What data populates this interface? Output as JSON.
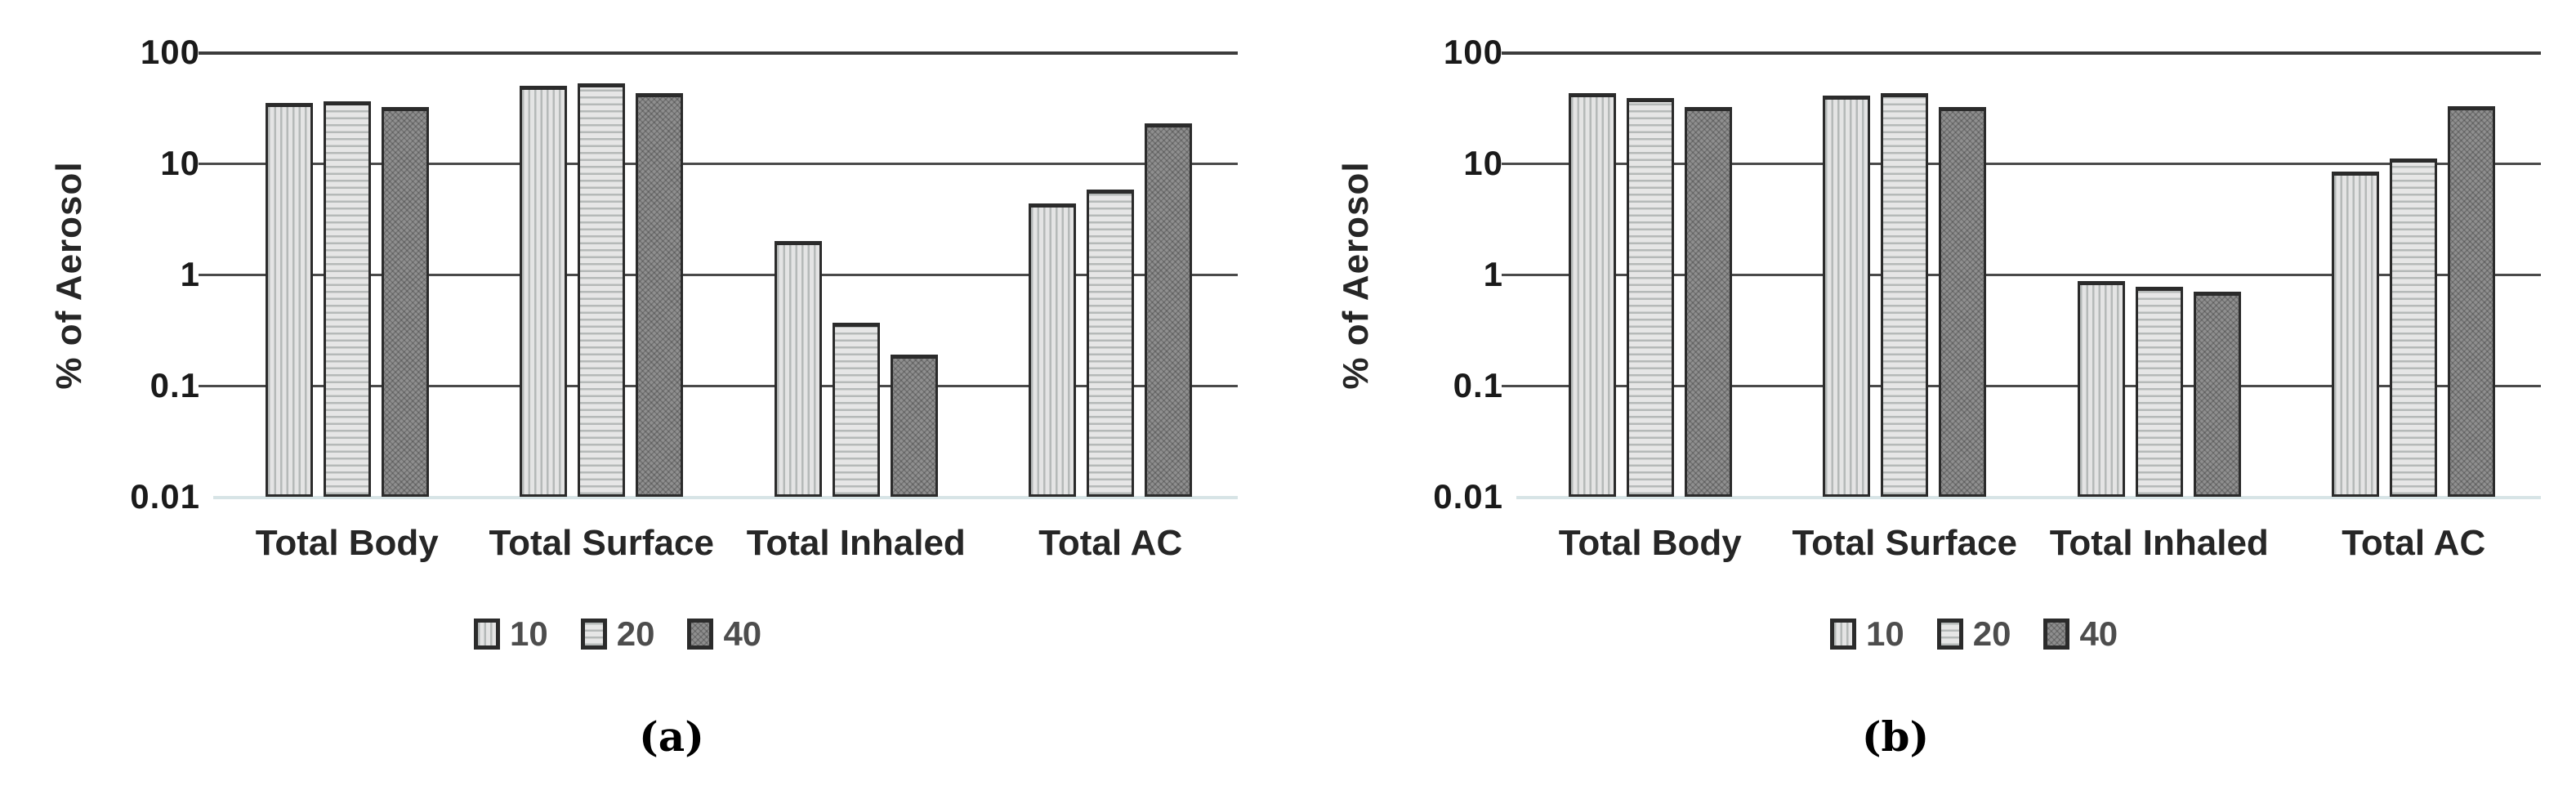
{
  "figure": {
    "background": "#ffffff",
    "panel_a_label": "(a)",
    "panel_b_label": "(b)"
  },
  "colors": {
    "bar_light_fill": "#e4e4e4",
    "bar_stripe": "#b5b9b8",
    "bar_dark_fill": "#8f8f8f",
    "bar_outline": "#2b2b2b",
    "gridline": "#4a4a4a",
    "baseline": "#d7e4e6",
    "text": "#1f1f1f",
    "legend_text": "#4d4d4d"
  },
  "chart_data": [
    {
      "type": "bar",
      "panel_label": "(a)",
      "ylabel": "% of Aerosol",
      "xlabel": "",
      "yscale": "log",
      "ylim": [
        0.01,
        100
      ],
      "yticks": [
        "100",
        "10",
        "1",
        "0.1",
        "0.01"
      ],
      "grid": true,
      "legend_position": "bottom",
      "categories": [
        "Total Body",
        "Total Surface",
        "Total Inhaled",
        "Total AC"
      ],
      "series": [
        {
          "name": "10",
          "pattern": "vertical-stripes",
          "values": [
            35,
            50,
            2.0,
            4.4
          ]
        },
        {
          "name": "20",
          "pattern": "horizontal-stripes",
          "values": [
            36,
            53,
            0.37,
            5.8
          ]
        },
        {
          "name": "40",
          "pattern": "dark-crosshatch",
          "values": [
            32,
            43,
            0.19,
            23
          ]
        }
      ]
    },
    {
      "type": "bar",
      "panel_label": "(b)",
      "ylabel": "% of Aerosol",
      "xlabel": "",
      "yscale": "log",
      "ylim": [
        0.01,
        100
      ],
      "yticks": [
        "100",
        "10",
        "1",
        "0.1",
        "0.01"
      ],
      "grid": true,
      "legend_position": "bottom",
      "categories": [
        "Total Body",
        "Total Surface",
        "Total Inhaled",
        "Total AC"
      ],
      "series": [
        {
          "name": "10",
          "pattern": "vertical-stripes",
          "values": [
            43,
            41,
            0.88,
            8.5
          ]
        },
        {
          "name": "20",
          "pattern": "horizontal-stripes",
          "values": [
            39,
            43,
            0.78,
            11
          ]
        },
        {
          "name": "40",
          "pattern": "dark-crosshatch",
          "values": [
            32,
            32,
            0.7,
            33
          ]
        }
      ]
    }
  ]
}
